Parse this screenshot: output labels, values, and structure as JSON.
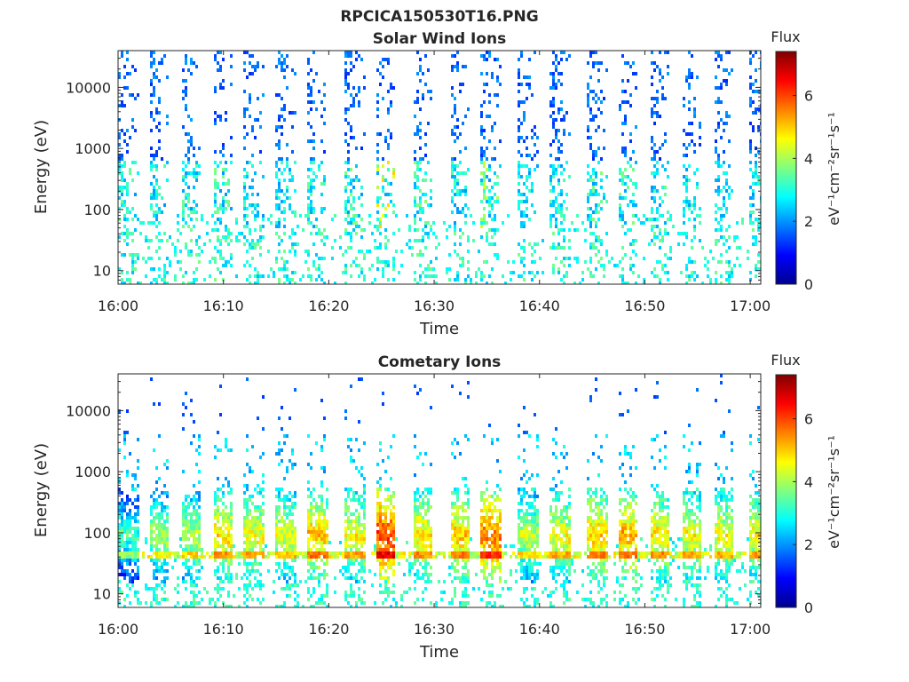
{
  "figure": {
    "title": "RPCICA150530T16.PNG"
  },
  "chart_data": [
    {
      "type": "heatmap",
      "title": "Solar Wind Ions",
      "xlabel": "Time",
      "ylabel": "Energy (eV)",
      "x_ticks": [
        "16:00",
        "16:10",
        "16:20",
        "16:30",
        "16:40",
        "16:50",
        "17:00"
      ],
      "y_ticks": [
        "10",
        "100",
        "1000",
        "10000"
      ],
      "y_scale": "log",
      "ylim": [
        6,
        40000
      ],
      "xlim": [
        "16:00",
        "17:01"
      ],
      "colorbar": {
        "title": "Flux",
        "label": "eV⁻¹cm⁻²sr⁻¹s⁻¹",
        "ticks": [
          "0",
          "2",
          "4",
          "6"
        ],
        "range": [
          0,
          7.4
        ],
        "colormap": "jet"
      },
      "sweep_start_minutes": [
        0,
        3,
        6,
        9,
        12,
        15,
        18,
        21.5,
        24.5,
        28,
        31.5,
        34.5,
        38,
        41,
        44.5,
        47.5,
        50.5,
        53.5,
        56.5,
        60
      ],
      "peak_flux_by_sweep": [
        3.2,
        3.0,
        3.2,
        3.4,
        3.0,
        3.0,
        3.2,
        3.4,
        4.6,
        3.4,
        3.0,
        4.0,
        2.8,
        3.0,
        3.4,
        3.4,
        3.2,
        3.0,
        2.8,
        3.0
      ],
      "high_energy_scatter_eV": [
        1000,
        20000
      ],
      "grid": false
    },
    {
      "type": "heatmap",
      "title": "Cometary Ions",
      "xlabel": "Time",
      "ylabel": "Energy (eV)",
      "x_ticks": [
        "16:00",
        "16:10",
        "16:20",
        "16:30",
        "16:40",
        "16:50",
        "17:00"
      ],
      "y_ticks": [
        "10",
        "100",
        "1000",
        "10000"
      ],
      "y_scale": "log",
      "ylim": [
        6,
        40000
      ],
      "xlim": [
        "16:00",
        "17:01"
      ],
      "colorbar": {
        "title": "Flux",
        "label": "eV⁻¹cm⁻²sr⁻¹s⁻¹",
        "ticks": [
          "0",
          "2",
          "4",
          "6"
        ],
        "range": [
          0,
          7.4
        ],
        "colormap": "jet"
      },
      "sweep_start_minutes": [
        0,
        3,
        6,
        9,
        12,
        15,
        18,
        21.5,
        24.5,
        28,
        31.5,
        34.5,
        38,
        41,
        44.5,
        47.5,
        50.5,
        53.5,
        56.5,
        60
      ],
      "peak_flux_by_sweep": [
        3.8,
        4.6,
        4.8,
        5.4,
        5.2,
        5.0,
        5.6,
        5.2,
        6.6,
        5.4,
        5.6,
        6.2,
        4.8,
        5.2,
        5.6,
        5.8,
        5.4,
        5.2,
        5.2,
        5.2
      ],
      "grid": false
    }
  ]
}
